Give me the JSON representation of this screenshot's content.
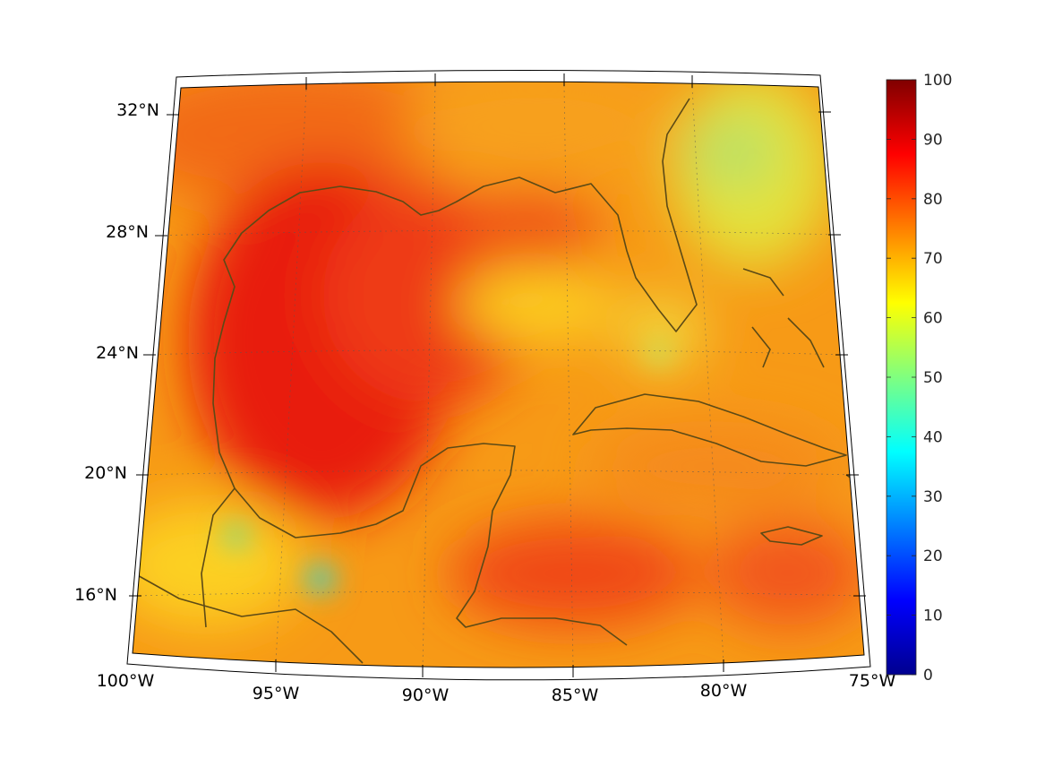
{
  "map": {
    "lon_labels": [
      "100°W",
      "95°W",
      "90°W",
      "85°W",
      "80°W",
      "75°W"
    ],
    "lat_labels": [
      "16°N",
      "20°N",
      "24°N",
      "28°N",
      "32°N"
    ]
  },
  "colorbar": {
    "min": 0,
    "max": 100,
    "ticks": [
      "0",
      "10",
      "20",
      "30",
      "40",
      "50",
      "60",
      "70",
      "80",
      "90",
      "100"
    ],
    "colormap": "jet"
  },
  "colors": {
    "coastline": "#5c4a16",
    "land_base": "#f7a21a",
    "gulf_core": "#e8140f",
    "atlantic_low": "#d8e63a"
  }
}
